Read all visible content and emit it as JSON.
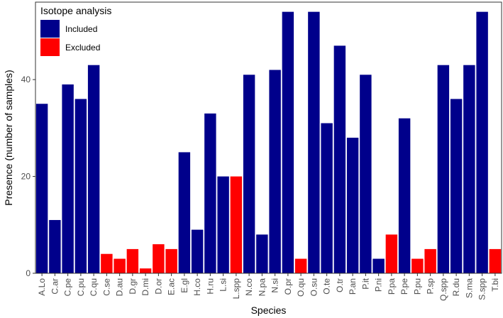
{
  "chart_data": {
    "type": "bar",
    "xlabel": "Species",
    "ylabel": "Presence (number of samples)",
    "ylim": [
      0,
      56
    ],
    "yticks": [
      0,
      20,
      40
    ],
    "grid": false,
    "legend": {
      "title": "Isotope analysis",
      "placement": "top-left",
      "entries": [
        {
          "label": "Included",
          "color": "#00008b"
        },
        {
          "label": "Excluded",
          "color": "#ff0000"
        }
      ]
    },
    "categories": [
      "A.Lo",
      "C.ar",
      "C.pe",
      "C.pu",
      "C.qu",
      "C.se",
      "D.au",
      "D.gr",
      "D.mi",
      "D.or",
      "E.ac",
      "E.gl",
      "H.co",
      "H.ru",
      "L.si",
      "L.spp",
      "N.co",
      "N.pa",
      "N.si",
      "O.pr",
      "O.qu",
      "O.su",
      "O.te",
      "O.tr",
      "P.an",
      "P.it",
      "P.ni",
      "P.pa",
      "P.pe",
      "P.pu",
      "P.sp",
      "Q.spp",
      "R.du",
      "S.ma",
      "S.spp",
      "T.bi"
    ],
    "values": [
      35,
      11,
      39,
      36,
      43,
      4,
      3,
      5,
      1,
      6,
      5,
      25,
      9,
      33,
      20,
      20,
      41,
      8,
      42,
      54,
      3,
      54,
      31,
      47,
      28,
      41,
      3,
      8,
      32,
      3,
      5,
      43,
      36,
      43,
      54,
      5
    ],
    "group": [
      "Included",
      "Included",
      "Included",
      "Included",
      "Included",
      "Excluded",
      "Excluded",
      "Excluded",
      "Excluded",
      "Excluded",
      "Excluded",
      "Included",
      "Included",
      "Included",
      "Included",
      "Excluded",
      "Included",
      "Included",
      "Included",
      "Included",
      "Excluded",
      "Included",
      "Included",
      "Included",
      "Included",
      "Included",
      "Included",
      "Excluded",
      "Included",
      "Excluded",
      "Excluded",
      "Included",
      "Included",
      "Included",
      "Included",
      "Excluded"
    ]
  }
}
